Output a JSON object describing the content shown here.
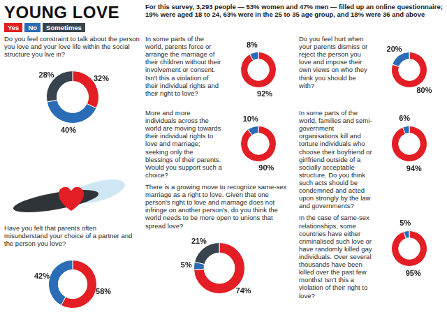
{
  "title": "YOUNG LOVE",
  "key": [
    {
      "name": "Yes",
      "color": "#e31e24"
    },
    {
      "name": "No",
      "color": "#2b6cb6"
    },
    {
      "name": "Sometimes",
      "color": "#38434d"
    }
  ],
  "note": "For this survey, 3,293 people — 53% women and 47% men — filled up an online questionnaire; 19% were aged 18 to 24, 63% were in the 25 to 35 age group, and 18% were 36 and above",
  "chart_data": [
    {
      "type": "doughnut",
      "title": "Do you feel constraint to talk about the person you love and your love life within the social structure you live in?",
      "categories": [
        "Yes",
        "No",
        "Sometimes"
      ],
      "values": [
        32,
        40,
        28
      ],
      "value_labels": [
        "32%",
        "40%",
        "28%"
      ],
      "colors": [
        "#e31e24",
        "#2b6cb6",
        "#38434d"
      ],
      "data_labels": true
    },
    {
      "type": "doughnut",
      "title": "Have you felt that parents often misunderstand your choice of a partner and the person you love?",
      "categories": [
        "Yes",
        "No"
      ],
      "values": [
        58,
        42
      ],
      "value_labels": [
        "58%",
        "42%"
      ],
      "colors": [
        "#e31e24",
        "#2b6cb6"
      ],
      "data_labels": true
    },
    {
      "type": "doughnut",
      "title": "In some parts of the world, parents force or arrange the marriage of their children without their involvement or consent. Isn't this a violation of their individual rights and their right to love?",
      "categories": [
        "Yes",
        "No"
      ],
      "values": [
        92,
        8
      ],
      "value_labels": [
        "92%",
        "8%"
      ],
      "colors": [
        "#e31e24",
        "#2b6cb6"
      ],
      "data_labels": true
    },
    {
      "type": "doughnut",
      "title": "More and more individuals across the world are moving towards their individual rights to love and marriage; seeking only the blessings of their parents. Would you support such a choice?",
      "categories": [
        "Yes",
        "No"
      ],
      "values": [
        90,
        10
      ],
      "value_labels": [
        "90%",
        "10%"
      ],
      "colors": [
        "#e31e24",
        "#2b6cb6"
      ],
      "data_labels": true
    },
    {
      "type": "doughnut",
      "title": "There is a growing move to recognize same-sex marriage as a right to love. Given that one person's right to love and marriage does not infringe on another person's, do you think the world needs to be more open to unions that spread love?",
      "categories": [
        "Yes",
        "No",
        "Sometimes"
      ],
      "values": [
        74,
        5,
        21
      ],
      "value_labels": [
        "74%",
        "5%",
        "21%"
      ],
      "colors": [
        "#e31e24",
        "#2b6cb6",
        "#38434d"
      ],
      "data_labels": true
    },
    {
      "type": "doughnut",
      "title": "Do you feel hurt when your parents dismiss or reject the person you love and impose their own views on who they think you should be with?",
      "categories": [
        "Yes",
        "No"
      ],
      "values": [
        80,
        20
      ],
      "value_labels": [
        "80%",
        "20%"
      ],
      "colors": [
        "#e31e24",
        "#2b6cb6"
      ],
      "data_labels": true
    },
    {
      "type": "doughnut",
      "title": "In some parts of the world, families and semi-government organisations kill and torture individuals who choose their boyfriend or girlfriend outside of a socially acceptable structure. Do you think such acts should be condemned and acted upon strongly by the law and governments?",
      "categories": [
        "Yes",
        "No"
      ],
      "values": [
        94,
        6
      ],
      "value_labels": [
        "94%",
        "6%"
      ],
      "colors": [
        "#e31e24",
        "#2b6cb6"
      ],
      "data_labels": true
    },
    {
      "type": "doughnut",
      "title": "In the case of same-sex relationships, some countries have either criminalised such love or have randomly killed gay individuals. Over several thousands have been killed over the past few months! Isn't this a violation of their right to love?",
      "categories": [
        "Yes",
        "No"
      ],
      "values": [
        95,
        5
      ],
      "value_labels": [
        "95%",
        "5%"
      ],
      "colors": [
        "#e31e24",
        "#2b6cb6"
      ],
      "data_labels": true
    }
  ]
}
